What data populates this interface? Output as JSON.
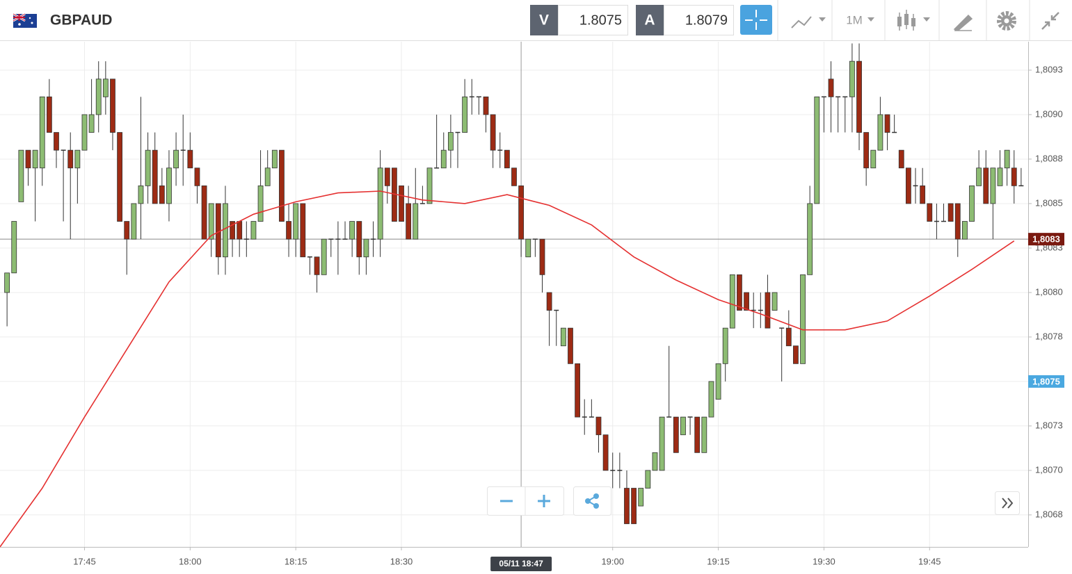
{
  "chart_data": {
    "type": "candlestick",
    "title": "GBPAUD",
    "bid_label": "V",
    "bid": 1.8075,
    "ask_label": "A",
    "ask": 1.8079,
    "timeframe": "1M",
    "up_color": "#8dbc73",
    "down_color": "#9d2b14",
    "x": [
      "17:34",
      "17:35",
      "17:36",
      "17:37",
      "17:38",
      "17:39",
      "17:40",
      "17:41",
      "17:42",
      "17:43",
      "17:44",
      "17:45",
      "17:46",
      "17:47",
      "17:48",
      "17:49",
      "17:50",
      "17:51",
      "17:52",
      "17:53",
      "17:54",
      "17:55",
      "17:56",
      "17:57",
      "17:58",
      "17:59",
      "18:00",
      "18:01",
      "18:02",
      "18:03",
      "18:04",
      "18:05",
      "18:06",
      "18:07",
      "18:08",
      "18:09",
      "18:10",
      "18:11",
      "18:12",
      "18:13",
      "18:14",
      "18:15",
      "18:16",
      "18:17",
      "18:18",
      "18:19",
      "18:20",
      "18:21",
      "18:22",
      "18:23",
      "18:24",
      "18:25",
      "18:26",
      "18:27",
      "18:28",
      "18:29",
      "18:30",
      "18:31",
      "18:32",
      "18:33",
      "18:34",
      "18:35",
      "18:36",
      "18:37",
      "18:38",
      "18:39",
      "18:40",
      "18:41",
      "18:42",
      "18:43",
      "18:44",
      "18:45",
      "18:46",
      "18:47",
      "18:48",
      "18:49",
      "18:50",
      "18:51",
      "18:52",
      "18:53",
      "18:54",
      "18:55",
      "18:56",
      "18:57",
      "18:58",
      "18:59",
      "19:00",
      "19:01",
      "19:02",
      "19:03",
      "19:04",
      "19:05",
      "19:06",
      "19:07",
      "19:08",
      "19:09",
      "19:10",
      "19:11",
      "19:12",
      "19:13",
      "19:14",
      "19:15",
      "19:16",
      "19:17",
      "19:18",
      "19:19",
      "19:20",
      "19:21",
      "19:22",
      "19:23",
      "19:24",
      "19:25",
      "19:26",
      "19:27",
      "19:28",
      "19:29",
      "19:30",
      "19:31",
      "19:32",
      "19:33",
      "19:34",
      "19:35",
      "19:36",
      "19:37",
      "19:38",
      "19:39",
      "19:40",
      "19:41",
      "19:42",
      "19:43",
      "19:44",
      "19:45",
      "19:46",
      "19:47",
      "19:48",
      "19:49",
      "19:50",
      "19:51",
      "19:52",
      "19:53",
      "19:54",
      "19:55",
      "19:56",
      "19:57",
      "19:58"
    ],
    "open": [
      1.808,
      1.80811,
      1.80851,
      1.8088,
      1.8087,
      1.8087,
      1.8091,
      1.8089,
      1.8088,
      1.8088,
      1.8087,
      1.8088,
      1.8089,
      1.809,
      1.8091,
      1.8092,
      1.8089,
      1.8084,
      1.8083,
      1.8085,
      1.8086,
      1.8088,
      1.8086,
      1.8085,
      1.8087,
      1.8088,
      1.8088,
      1.8087,
      1.8086,
      1.8083,
      1.8085,
      1.8082,
      1.8084,
      1.8084,
      1.8083,
      1.8083,
      1.8084,
      1.8086,
      1.8087,
      1.8088,
      1.8084,
      1.8083,
      1.8085,
      1.8082,
      1.8082,
      1.8081,
      1.8083,
      1.8083,
      1.8083,
      1.8083,
      1.8084,
      1.8082,
      1.8083,
      1.8083,
      1.8087,
      1.8087,
      1.8086,
      1.8085,
      1.8083,
      1.8085,
      1.8085,
      1.8087,
      1.8087,
      1.8088,
      1.8089,
      1.8089,
      1.8091,
      1.8091,
      1.8091,
      1.809,
      1.8088,
      1.8088,
      1.8087,
      1.8086,
      1.8082,
      1.8083,
      1.8083,
      1.808,
      1.8079,
      1.8077,
      1.8078,
      1.8076,
      1.8073,
      1.8073,
      1.8073,
      1.8072,
      1.807,
      1.807,
      1.8069,
      1.8069,
      1.8068,
      1.8069,
      1.807,
      1.807,
      1.8073,
      1.8073,
      1.8072,
      1.8073,
      1.8073,
      1.8071,
      1.8073,
      1.8074,
      1.8076,
      1.8078,
      1.8081,
      1.808,
      1.8079,
      1.8079,
      1.808,
      1.8079,
      1.8078,
      1.8078,
      1.8077,
      1.8076,
      1.8081,
      1.8085,
      1.8091,
      1.8092,
      1.8091,
      1.8091,
      1.8091,
      1.8093,
      1.8089,
      1.8087,
      1.8088,
      1.809,
      1.8089,
      1.8088,
      1.8087,
      1.8086,
      1.8086,
      1.8085,
      1.8084,
      1.8084,
      1.8085,
      1.8085,
      1.8083,
      1.8084,
      1.8086,
      1.8087,
      1.8085,
      1.8086,
      1.8087,
      1.8087,
      1.8086
    ],
    "high": [
      1.80811,
      1.8084,
      1.8088,
      1.8088,
      1.8088,
      1.8091,
      1.8092,
      1.8089,
      1.8088,
      1.8089,
      1.8088,
      1.809,
      1.8092,
      1.8093,
      1.8093,
      1.8092,
      1.8089,
      1.8084,
      1.8085,
      1.8091,
      1.8089,
      1.8089,
      1.8087,
      1.8088,
      1.8089,
      1.809,
      1.8089,
      1.8087,
      1.8086,
      1.8085,
      1.8085,
      1.8086,
      1.8084,
      1.8084,
      1.8084,
      1.8084,
      1.8088,
      1.8088,
      1.8088,
      1.8088,
      1.8085,
      1.8085,
      1.8085,
      1.8082,
      1.8082,
      1.8083,
      1.8083,
      1.8084,
      1.8084,
      1.8084,
      1.8084,
      1.8083,
      1.8084,
      1.8088,
      1.8087,
      1.8087,
      1.8086,
      1.8086,
      1.8087,
      1.8086,
      1.8087,
      1.809,
      1.8089,
      1.809,
      1.8089,
      1.8092,
      1.8092,
      1.8091,
      1.8091,
      1.809,
      1.8089,
      1.8088,
      1.8087,
      1.8086,
      1.8083,
      1.8083,
      1.8083,
      1.808,
      1.8079,
      1.8078,
      1.8078,
      1.8076,
      1.8074,
      1.8074,
      1.8073,
      1.8072,
      1.8071,
      1.8071,
      1.807,
      1.8069,
      1.8069,
      1.807,
      1.8071,
      1.8073,
      1.8077,
      1.8073,
      1.8073,
      1.8073,
      1.8073,
      1.8073,
      1.8075,
      1.8076,
      1.8078,
      1.8081,
      1.8081,
      1.808,
      1.808,
      1.808,
      1.8081,
      1.808,
      1.8078,
      1.8079,
      1.8077,
      1.8081,
      1.8086,
      1.8091,
      1.8091,
      1.8093,
      1.8091,
      1.8091,
      1.8094,
      1.8094,
      1.8089,
      1.8088,
      1.8091,
      1.809,
      1.809,
      1.8088,
      1.8087,
      1.8087,
      1.8087,
      1.8085,
      1.8085,
      1.8085,
      1.8085,
      1.8085,
      1.8084,
      1.8086,
      1.8088,
      1.8088,
      1.8087,
      1.8088,
      1.8088,
      1.8088,
      1.8087
    ],
    "low": [
      1.80781,
      1.80811,
      1.80851,
      1.8086,
      1.8084,
      1.8086,
      1.8089,
      1.8087,
      1.8084,
      1.8083,
      1.8085,
      1.8088,
      1.8089,
      1.8089,
      1.809,
      1.8088,
      1.8084,
      1.8081,
      1.8083,
      1.8083,
      1.8085,
      1.8085,
      1.8085,
      1.8084,
      1.8086,
      1.8086,
      1.8087,
      1.8085,
      1.8083,
      1.8082,
      1.8081,
      1.8081,
      1.8082,
      1.8082,
      1.8082,
      1.8083,
      1.8084,
      1.8086,
      1.8087,
      1.8084,
      1.8082,
      1.8082,
      1.8082,
      1.8081,
      1.808,
      1.8081,
      1.8082,
      1.8081,
      1.8083,
      1.8082,
      1.8081,
      1.8081,
      1.8082,
      1.8082,
      1.8085,
      1.8084,
      1.8084,
      1.8083,
      1.8083,
      1.8085,
      1.8085,
      1.8087,
      1.8087,
      1.8087,
      1.8087,
      1.8089,
      1.809,
      1.809,
      1.8089,
      1.8087,
      1.8087,
      1.8087,
      1.8086,
      1.8082,
      1.8082,
      1.8082,
      1.808,
      1.8077,
      1.8077,
      1.8077,
      1.8076,
      1.8073,
      1.8072,
      1.8073,
      1.8071,
      1.807,
      1.8069,
      1.8069,
      1.8067,
      1.8067,
      1.8068,
      1.8069,
      1.807,
      1.807,
      1.8073,
      1.8071,
      1.8072,
      1.8072,
      1.8071,
      1.8071,
      1.8073,
      1.8074,
      1.8075,
      1.8078,
      1.8079,
      1.8079,
      1.8078,
      1.8078,
      1.8078,
      1.8079,
      1.8075,
      1.8077,
      1.8076,
      1.8076,
      1.8081,
      1.8085,
      1.8089,
      1.8089,
      1.8089,
      1.8089,
      1.8089,
      1.8088,
      1.8086,
      1.8087,
      1.8088,
      1.8088,
      1.8089,
      1.8087,
      1.8085,
      1.8085,
      1.8085,
      1.8084,
      1.8083,
      1.8084,
      1.8084,
      1.8082,
      1.8083,
      1.8084,
      1.8086,
      1.8085,
      1.8083,
      1.8086,
      1.8086,
      1.8085,
      1.8086
    ],
    "close": [
      1.80811,
      1.8084,
      1.8088,
      1.8087,
      1.8088,
      1.8091,
      1.8089,
      1.8088,
      1.8088,
      1.8087,
      1.8088,
      1.809,
      1.809,
      1.8092,
      1.8092,
      1.8089,
      1.8084,
      1.8083,
      1.8085,
      1.8086,
      1.8088,
      1.8085,
      1.8085,
      1.8087,
      1.8088,
      1.8088,
      1.8087,
      1.8086,
      1.8083,
      1.8085,
      1.8082,
      1.8085,
      1.8083,
      1.8083,
      1.8083,
      1.8084,
      1.8086,
      1.8087,
      1.8088,
      1.8084,
      1.8083,
      1.8085,
      1.8082,
      1.8082,
      1.8081,
      1.8083,
      1.8083,
      1.8083,
      1.8083,
      1.8084,
      1.8082,
      1.8083,
      1.8083,
      1.8087,
      1.8086,
      1.8084,
      1.8084,
      1.8083,
      1.8085,
      1.8085,
      1.8087,
      1.8087,
      1.8088,
      1.8089,
      1.8089,
      1.8091,
      1.8091,
      1.8091,
      1.809,
      1.8088,
      1.8088,
      1.8087,
      1.8086,
      1.8083,
      1.8083,
      1.8083,
      1.8081,
      1.8079,
      1.8079,
      1.8078,
      1.8076,
      1.8073,
      1.8073,
      1.8073,
      1.8072,
      1.807,
      1.807,
      1.807,
      1.8067,
      1.8067,
      1.8069,
      1.807,
      1.8071,
      1.8073,
      1.8073,
      1.8071,
      1.8073,
      1.8073,
      1.8071,
      1.8073,
      1.8075,
      1.8076,
      1.8078,
      1.8081,
      1.8079,
      1.8079,
      1.8079,
      1.8079,
      1.8078,
      1.808,
      1.8078,
      1.8077,
      1.8076,
      1.8081,
      1.8085,
      1.8091,
      1.8091,
      1.8091,
      1.8091,
      1.8091,
      1.8093,
      1.8089,
      1.8087,
      1.8088,
      1.809,
      1.8089,
      1.8089,
      1.8087,
      1.8085,
      1.8086,
      1.8085,
      1.8084,
      1.8084,
      1.8084,
      1.8084,
      1.8083,
      1.8084,
      1.8086,
      1.8087,
      1.8085,
      1.8087,
      1.8087,
      1.8088,
      1.8086,
      1.8086
    ],
    "ma": {
      "color": "#e53030",
      "x": [
        "17:33",
        "17:39",
        "17:45",
        "17:51",
        "17:57",
        "18:03",
        "18:09",
        "18:15",
        "18:21",
        "18:27",
        "18:33",
        "18:39",
        "18:45",
        "18:51",
        "18:57",
        "19:03",
        "19:09",
        "19:15",
        "19:21",
        "19:27",
        "19:33",
        "19:39",
        "19:45",
        "19:51",
        "19:57"
      ],
      "values": [
        1.80657,
        1.8069,
        1.8073,
        1.80768,
        1.80806,
        1.80832,
        1.80844,
        1.80851,
        1.80856,
        1.80857,
        1.80852,
        1.8085,
        1.80855,
        1.80849,
        1.80838,
        1.8082,
        1.80807,
        1.80796,
        1.80788,
        1.80779,
        1.80779,
        1.80784,
        1.80798,
        1.80813,
        1.80829
      ]
    },
    "xlim": [
      "17:33",
      "19:59"
    ],
    "xticks": [
      "17:45",
      "18:00",
      "18:15",
      "18:30",
      "19:00",
      "19:15",
      "19:30",
      "19:45"
    ],
    "ylim": [
      1.80657,
      1.80941
    ],
    "yticks": [
      {
        "value": 1.80675,
        "label": "1,8068"
      },
      {
        "value": 1.807,
        "label": "1,8070"
      },
      {
        "value": 1.80725,
        "label": "1,8073"
      },
      {
        "value": 1.8075,
        "label": "1,8075"
      },
      {
        "value": 1.80775,
        "label": "1,8078"
      },
      {
        "value": 1.808,
        "label": "1,8080"
      },
      {
        "value": 1.80825,
        "label": "1,8083"
      },
      {
        "value": 1.8085,
        "label": "1,8085"
      },
      {
        "value": 1.80875,
        "label": "1,8088"
      },
      {
        "value": 1.809,
        "label": "1,8090"
      },
      {
        "value": 1.80925,
        "label": "1,8093"
      }
    ],
    "grid": true,
    "markers": [
      {
        "value": 1.8083,
        "label": "1,8083",
        "color": "#7a1a10",
        "line": true
      },
      {
        "value": 1.8075,
        "label": "1,8075",
        "color": "#4aa8e0",
        "line": false
      }
    ],
    "crosshair": {
      "x": "18:47",
      "label": "05/11 18:47"
    }
  }
}
